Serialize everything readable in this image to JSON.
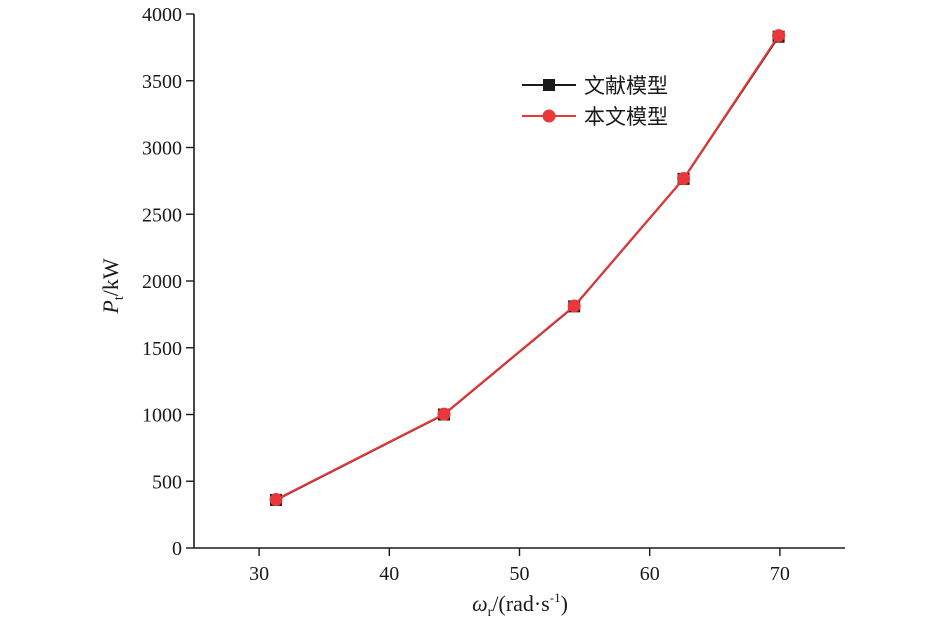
{
  "chart_data": {
    "type": "line",
    "title": "",
    "xlabel": {
      "symbol": "ω",
      "subscript": "r",
      "unit": "/(rad·s",
      "superscript": "-1",
      "close": ")"
    },
    "ylabel": {
      "symbol": "P",
      "subscript": "t",
      "unit": "/kW"
    },
    "xlim": [
      25,
      75
    ],
    "ylim": [
      0,
      4000
    ],
    "xticks": [
      30,
      40,
      50,
      60,
      70
    ],
    "yticks": [
      0,
      500,
      1000,
      1500,
      2000,
      2500,
      3000,
      3500,
      4000
    ],
    "grid": false,
    "legend_position": "top-right",
    "series": [
      {
        "name": "文献模型",
        "color": "#1a1a1a",
        "marker": "square",
        "x": [
          31.3,
          44.2,
          54.2,
          62.6,
          69.9
        ],
        "y": [
          360,
          1000,
          1810,
          2765,
          3830
        ]
      },
      {
        "name": "本文模型",
        "color": "#e8383a",
        "marker": "circle",
        "x": [
          31.3,
          44.2,
          54.2,
          62.6,
          69.9
        ],
        "y": [
          363,
          1003,
          1813,
          2768,
          3838
        ]
      }
    ]
  }
}
